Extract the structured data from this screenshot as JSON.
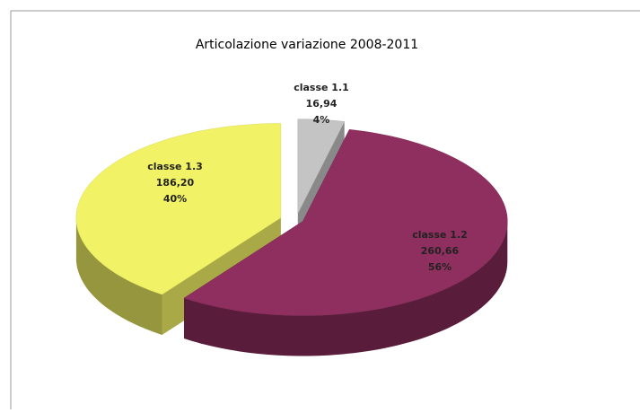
{
  "chart_data": {
    "type": "pie3d",
    "title": "Articolazione  variazione  2008-2011",
    "categories": [
      "classe 1.1",
      "classe 1.2",
      "classe 1.3"
    ],
    "values": [
      16.94,
      260.66,
      186.2
    ],
    "value_labels": [
      "16,94",
      "260,66",
      "186,20"
    ],
    "percent_labels": [
      "4%",
      "56%",
      "40%"
    ],
    "colors": [
      "#c4c4c4",
      "#8f2f5f",
      "#f2f266"
    ]
  }
}
